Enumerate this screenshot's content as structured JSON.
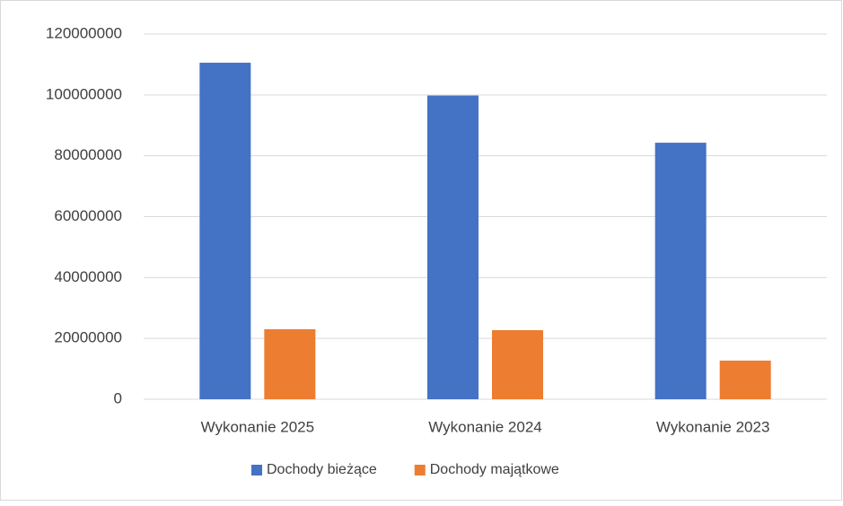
{
  "chart_data": {
    "type": "bar",
    "categories": [
      "Wykonanie 2025",
      "Wykonanie 2024",
      "Wykonanie 2023"
    ],
    "series": [
      {
        "name": "Dochody bieżące",
        "color": "#4472c4",
        "values": [
          110600000,
          99800000,
          84300000
        ]
      },
      {
        "name": "Dochody majątkowe",
        "color": "#ed7d31",
        "values": [
          23000000,
          22700000,
          12700000
        ]
      }
    ],
    "ylim": [
      0,
      120000000
    ],
    "yticks": [
      0,
      20000000,
      40000000,
      60000000,
      80000000,
      100000000,
      120000000
    ],
    "grid": true,
    "legend": "bottom"
  }
}
